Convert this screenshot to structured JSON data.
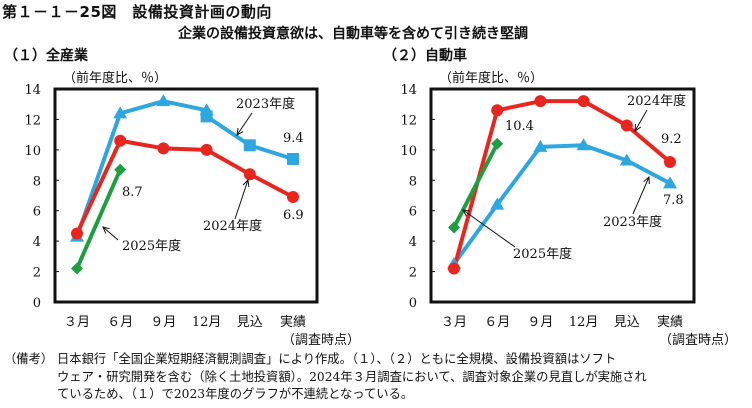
{
  "figure": {
    "title": "第１－１－25図　設備投資計画の動向",
    "subtitle": "企業の設備投資意欲は、自動車等を含めて引き続き堅調"
  },
  "panels": [
    {
      "label": "（１）全産業"
    },
    {
      "label": "（２）自動車"
    }
  ],
  "note": {
    "label": "（備考）",
    "lines": [
      "日本銀行「全国企業短期経済観測調査」により作成。（１）、（２）ともに全規模、設備投資額はソフト",
      "ウェア・研究開発を含む（除く土地投資額）。2024年３月調査において、調査対象企業の見直しが実施され",
      "ているため、（１）で2023年度のグラフが不連続となっている。"
    ]
  },
  "colors": {
    "fy2023": "#2ea7e0",
    "fy2024": "#e8261f",
    "fy2025": "#1e9e3e"
  },
  "chart_data": [
    {
      "type": "line",
      "title": "（１）全産業",
      "ylabel": "（前年度比、％）",
      "xlabel": "（調査時点）",
      "categories": [
        "３月",
        "６月",
        "９月",
        "12月",
        "見込",
        "実績"
      ],
      "yticks": [
        "0",
        "2",
        "4",
        "6",
        "8",
        "10",
        "12",
        "14"
      ],
      "ylim": [
        0,
        14
      ],
      "grid": false,
      "series": [
        {
          "name": "2023年度",
          "key": "fy2023",
          "marker": "triangle",
          "values": [
            4.3,
            12.4,
            13.2,
            12.6,
            null,
            null
          ]
        },
        {
          "name": "2023年度",
          "key": "fy2023",
          "marker": "square",
          "values": [
            null,
            null,
            null,
            12.2,
            10.3,
            9.4
          ]
        },
        {
          "name": "2024年度",
          "key": "fy2024",
          "marker": "circle",
          "values": [
            4.5,
            10.6,
            10.1,
            10.0,
            8.4,
            6.9
          ]
        },
        {
          "name": "2025年度",
          "key": "fy2025",
          "marker": "diamond",
          "values": [
            2.2,
            8.7,
            null,
            null,
            null,
            null
          ]
        }
      ],
      "annotations": [
        {
          "text": "2023年度"
        },
        {
          "text": "2024年度"
        },
        {
          "text": "2025年度"
        },
        {
          "text": "9.4"
        },
        {
          "text": "6.9"
        },
        {
          "text": "8.7"
        }
      ]
    },
    {
      "type": "line",
      "title": "（２）自動車",
      "ylabel": "（前年度比、％）",
      "xlabel": "（調査時点）",
      "categories": [
        "３月",
        "６月",
        "９月",
        "12月",
        "見込",
        "実績"
      ],
      "yticks": [
        "0",
        "2",
        "4",
        "6",
        "8",
        "10",
        "12",
        "14"
      ],
      "ylim": [
        0,
        14
      ],
      "grid": false,
      "series": [
        {
          "name": "2023年度",
          "key": "fy2023",
          "marker": "triangle",
          "values": [
            2.5,
            6.4,
            10.2,
            10.3,
            9.3,
            7.8
          ]
        },
        {
          "name": "2024年度",
          "key": "fy2024",
          "marker": "circle",
          "values": [
            2.2,
            12.6,
            13.2,
            13.2,
            11.6,
            9.2
          ]
        },
        {
          "name": "2025年度",
          "key": "fy2025",
          "marker": "diamond",
          "values": [
            4.9,
            10.4,
            null,
            null,
            null,
            null
          ]
        }
      ],
      "annotations": [
        {
          "text": "2024年度"
        },
        {
          "text": "2023年度"
        },
        {
          "text": "2025年度"
        },
        {
          "text": "9.2"
        },
        {
          "text": "7.8"
        },
        {
          "text": "10.4"
        }
      ]
    }
  ]
}
